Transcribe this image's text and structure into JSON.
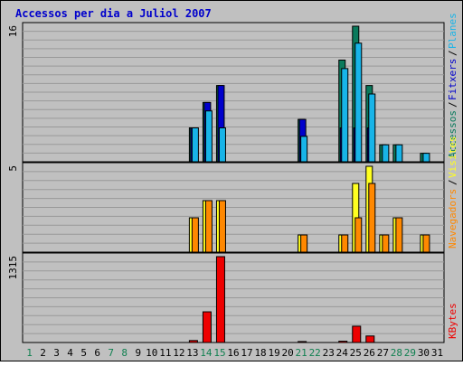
{
  "title": "Accessos per dia a Juliol 2007",
  "colors": {
    "background": "#c0c0c0",
    "plot_background": "#c0c0c0",
    "grid": "#999999",
    "title": "#0000cc",
    "weekend_label": "#108050",
    "weekday_label": "#000000",
    "accessos": "#0a7a5c",
    "fitxers": "#0000cc",
    "planes": "#18b4e8",
    "visites": "#ffff20",
    "navegadors": "#ff8800",
    "kbytes": "#ee0000"
  },
  "chart_data": [
    {
      "type": "bar",
      "panel": "top",
      "ymax_label": "16",
      "ylim": [
        0,
        16
      ],
      "categories": [
        "1",
        "2",
        "3",
        "4",
        "5",
        "6",
        "7",
        "8",
        "9",
        "10",
        "11",
        "12",
        "13",
        "14",
        "15",
        "16",
        "17",
        "18",
        "19",
        "20",
        "21",
        "22",
        "23",
        "24",
        "25",
        "26",
        "27",
        "28",
        "29",
        "30",
        "31"
      ],
      "legend": [
        {
          "key": "accessos",
          "label": "Accessos"
        },
        {
          "key": "fitxers",
          "label": "Fitxers"
        },
        {
          "key": "planes",
          "label": "Planes"
        }
      ],
      "series": [
        {
          "name": "Accessos",
          "key": "accessos",
          "values": [
            0,
            0,
            0,
            0,
            0,
            0,
            0,
            0,
            0,
            0,
            0,
            0,
            4,
            7,
            9,
            0,
            0,
            0,
            0,
            0,
            5,
            0,
            0,
            12,
            16,
            9,
            2,
            2,
            0,
            1,
            0
          ]
        },
        {
          "name": "Fitxers",
          "key": "fitxers",
          "values": [
            0,
            0,
            0,
            0,
            0,
            0,
            0,
            0,
            0,
            0,
            0,
            0,
            4,
            7,
            9,
            0,
            0,
            0,
            0,
            0,
            5,
            0,
            0,
            4,
            4,
            4,
            0,
            0,
            0,
            0,
            0
          ]
        },
        {
          "name": "Planes",
          "key": "planes",
          "values": [
            0,
            0,
            0,
            0,
            0,
            0,
            0,
            0,
            0,
            0,
            0,
            0,
            4,
            6,
            4,
            0,
            0,
            0,
            0,
            0,
            3,
            0,
            0,
            11,
            14,
            8,
            2,
            2,
            0,
            1,
            0
          ]
        }
      ]
    },
    {
      "type": "bar",
      "panel": "middle",
      "ymax_label": "5",
      "ylim": [
        0,
        5
      ],
      "categories": [
        "1",
        "2",
        "3",
        "4",
        "5",
        "6",
        "7",
        "8",
        "9",
        "10",
        "11",
        "12",
        "13",
        "14",
        "15",
        "16",
        "17",
        "18",
        "19",
        "20",
        "21",
        "22",
        "23",
        "24",
        "25",
        "26",
        "27",
        "28",
        "29",
        "30",
        "31"
      ],
      "legend": [
        {
          "key": "navegadors",
          "label": "Navegadors"
        },
        {
          "key": "visites",
          "label": "Visites"
        }
      ],
      "series": [
        {
          "name": "Visites",
          "key": "visites",
          "values": [
            0,
            0,
            0,
            0,
            0,
            0,
            0,
            0,
            0,
            0,
            0,
            0,
            2,
            3,
            3,
            0,
            0,
            0,
            0,
            0,
            1,
            0,
            0,
            1,
            4,
            5,
            1,
            2,
            0,
            1,
            0
          ]
        },
        {
          "name": "Navegadors",
          "key": "navegadors",
          "values": [
            0,
            0,
            0,
            0,
            0,
            0,
            0,
            0,
            0,
            0,
            0,
            0,
            2,
            3,
            3,
            0,
            0,
            0,
            0,
            0,
            1,
            0,
            0,
            1,
            2,
            4,
            1,
            2,
            0,
            1,
            0
          ]
        }
      ]
    },
    {
      "type": "bar",
      "panel": "bottom",
      "ymax_label": "1315",
      "ylim": [
        0,
        1315
      ],
      "categories": [
        "1",
        "2",
        "3",
        "4",
        "5",
        "6",
        "7",
        "8",
        "9",
        "10",
        "11",
        "12",
        "13",
        "14",
        "15",
        "16",
        "17",
        "18",
        "19",
        "20",
        "21",
        "22",
        "23",
        "24",
        "25",
        "26",
        "27",
        "28",
        "29",
        "30",
        "31"
      ],
      "legend": [
        {
          "key": "kbytes",
          "label": "KBytes"
        }
      ],
      "series": [
        {
          "name": "KBytes",
          "key": "kbytes",
          "values": [
            0,
            0,
            0,
            0,
            0,
            0,
            0,
            0,
            0,
            0,
            0,
            0,
            30,
            470,
            1315,
            0,
            0,
            0,
            0,
            0,
            15,
            0,
            0,
            20,
            250,
            100,
            0,
            0,
            0,
            0,
            0
          ]
        }
      ]
    }
  ],
  "x_axis": {
    "labels": [
      "1",
      "2",
      "3",
      "4",
      "5",
      "6",
      "7",
      "8",
      "9",
      "10",
      "11",
      "12",
      "13",
      "14",
      "15",
      "16",
      "17",
      "18",
      "19",
      "20",
      "21",
      "22",
      "23",
      "24",
      "25",
      "26",
      "27",
      "28",
      "29",
      "30",
      "31"
    ],
    "weekend": [
      "1",
      "7",
      "8",
      "14",
      "15",
      "21",
      "22",
      "28",
      "29"
    ]
  }
}
